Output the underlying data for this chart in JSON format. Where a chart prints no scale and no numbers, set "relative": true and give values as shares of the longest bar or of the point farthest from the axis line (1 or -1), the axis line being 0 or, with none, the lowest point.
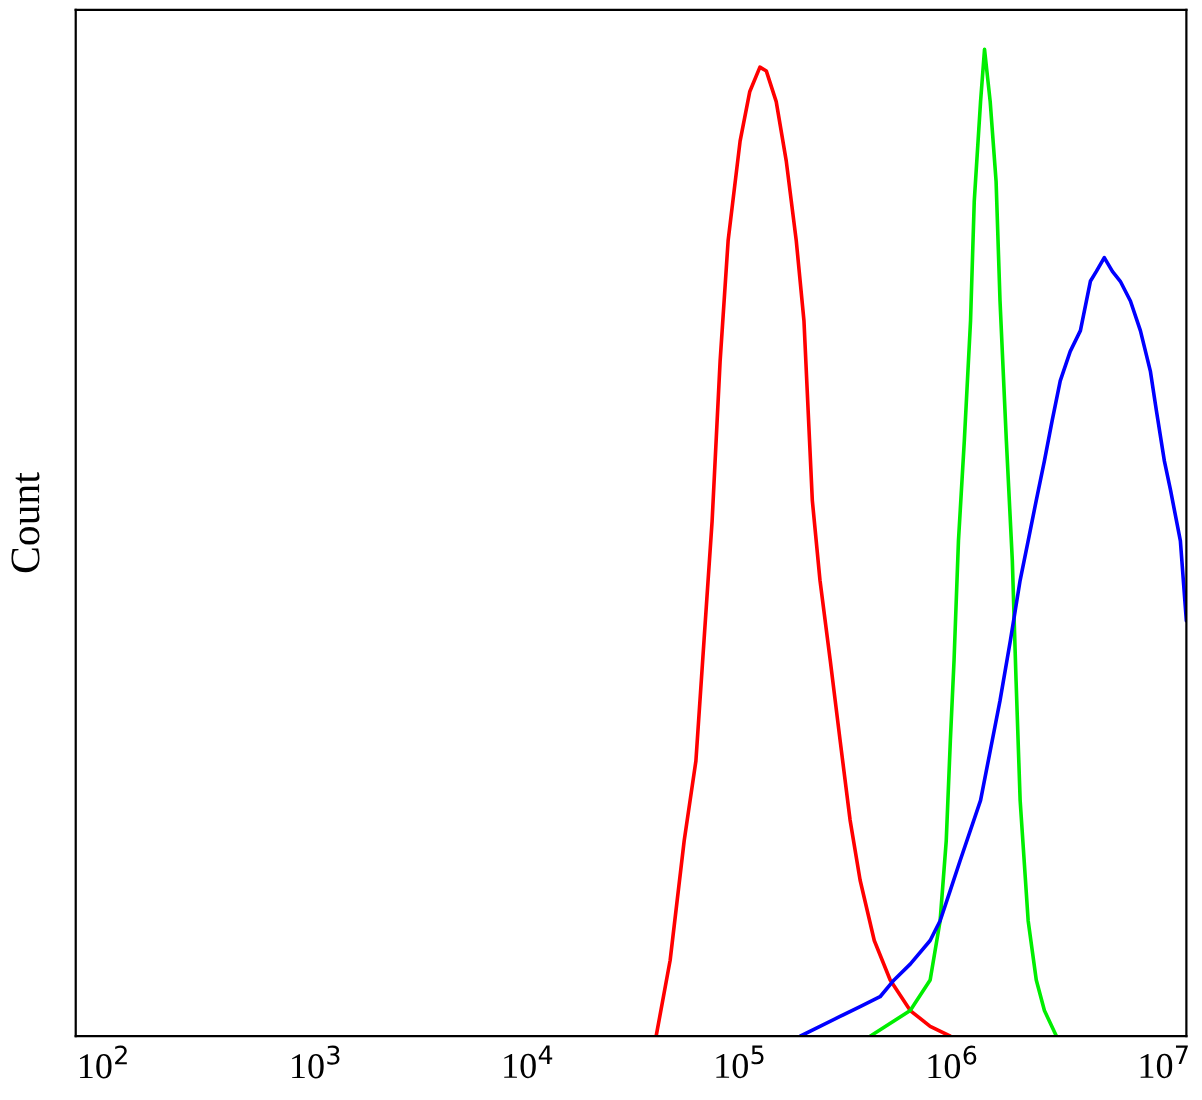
{
  "chart_data": {
    "type": "line",
    "ylabel": "Count",
    "relative": true,
    "log": "x",
    "grid": false,
    "xlim": [
      73.8,
      12700000
    ],
    "xticks": [
      {
        "value": 100,
        "label": "10$^{2}$"
      },
      {
        "value": 1000,
        "label": "10$^{3}$"
      },
      {
        "value": 10000,
        "label": "10$^{4}$"
      },
      {
        "value": 100000,
        "label": "10$^{5}$"
      },
      {
        "value": 1000000,
        "label": "10$^{6}$"
      },
      {
        "value": 10000000,
        "label": "10$^{7}$"
      }
    ],
    "series": [
      {
        "color": "#ff0000",
        "x": [
          40200,
          46800,
          54500,
          61900,
          67600,
          73800,
          80500,
          87800,
          100000,
          111000,
          124000,
          133000,
          148000,
          165000,
          184000,
          200000,
          219000,
          238000,
          266000,
          296000,
          330000,
          368000,
          429000,
          510000,
          634000,
          787000,
          980000
        ],
        "values": [
          0,
          0.077,
          0.198,
          0.279,
          0.401,
          0.522,
          0.684,
          0.806,
          0.907,
          0.957,
          0.982,
          0.978,
          0.947,
          0.887,
          0.806,
          0.725,
          0.543,
          0.462,
          0.381,
          0.3,
          0.219,
          0.158,
          0.097,
          0.057,
          0.026,
          0.01,
          0
        ]
      },
      {
        "color": "#00ee00",
        "x": [
          410000,
          634000,
          787000,
          877000,
          937000,
          980000,
          1020000,
          1070000,
          1140000,
          1220000,
          1270000,
          1360000,
          1420000,
          1510000,
          1610000,
          1680000,
          1800000,
          1920000,
          2000000,
          2090000,
          2280000,
          2490000,
          2720000,
          3100000
        ],
        "values": [
          0,
          0.026,
          0.057,
          0.117,
          0.198,
          0.3,
          0.381,
          0.502,
          0.603,
          0.725,
          0.846,
          0.947,
          1,
          0.947,
          0.866,
          0.745,
          0.603,
          0.482,
          0.36,
          0.239,
          0.117,
          0.057,
          0.026,
          0
        ]
      },
      {
        "color": "#0000ff",
        "x": [
          192000,
          238000,
          296000,
          368000,
          457000,
          532000,
          634000,
          787000,
          877000,
          980000,
          1090000,
          1360000,
          1510000,
          1680000,
          1880000,
          2090000,
          2280000,
          2490000,
          2720000,
          2960000,
          3230000,
          3600000,
          4020000,
          4480000,
          4780000,
          5210000,
          5690000,
          6200000,
          6920000,
          7710000,
          8590000,
          9170000,
          10000000,
          10700000,
          11900000,
          12700000
        ],
        "values": [
          0,
          0.01,
          0.02,
          0.03,
          0.04,
          0.057,
          0.073,
          0.097,
          0.117,
          0.148,
          0.178,
          0.239,
          0.289,
          0.34,
          0.401,
          0.462,
          0.502,
          0.543,
          0.583,
          0.624,
          0.664,
          0.694,
          0.715,
          0.765,
          0.775,
          0.789,
          0.775,
          0.765,
          0.745,
          0.715,
          0.674,
          0.634,
          0.583,
          0.553,
          0.502,
          0.421
        ]
      }
    ]
  }
}
